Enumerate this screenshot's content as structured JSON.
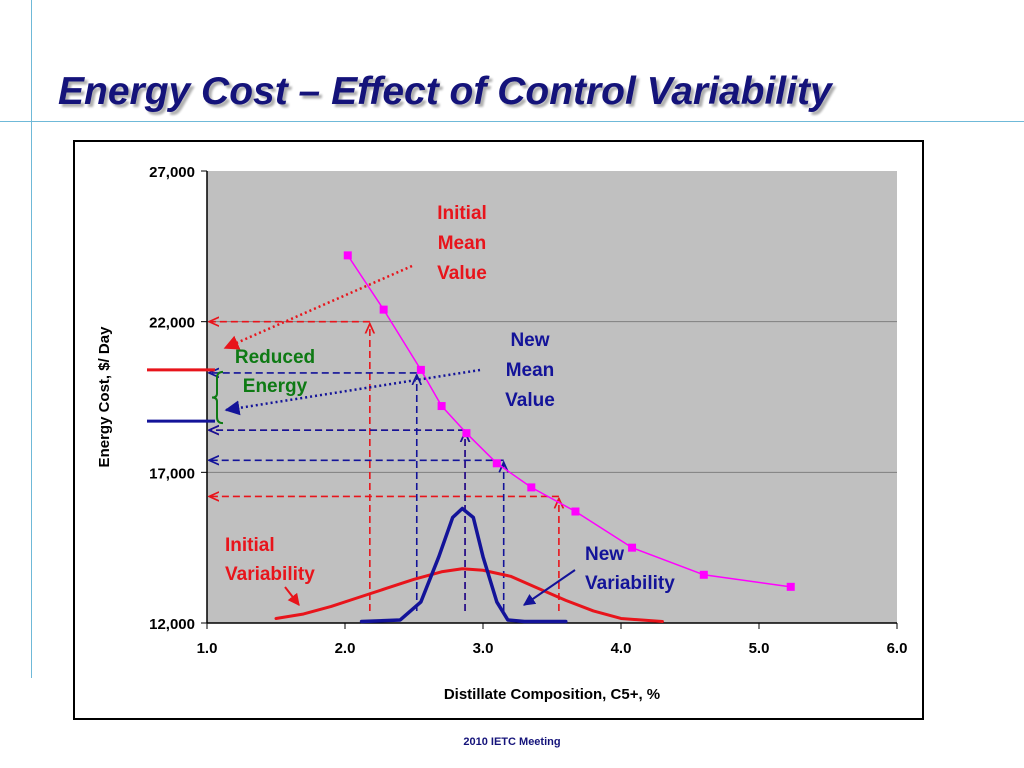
{
  "slide": {
    "title": "Energy Cost – Effect of Control Variability",
    "footer": "2010 IETC Meeting"
  },
  "colors": {
    "title": "#14137a",
    "plot_bg": "#c0c0c0",
    "cost_curve": "#ff00ff",
    "initial": "#e8141b",
    "new": "#131399",
    "reduced": "#0e7a14"
  },
  "chart_data": {
    "type": "line",
    "xlabel": "Distillate Composition, C5+, %",
    "ylabel": "Energy Cost, $/ Day",
    "xlim": [
      1.0,
      6.0
    ],
    "ylim": [
      12000,
      27000
    ],
    "x_ticks": [
      "1.0",
      "2.0",
      "3.0",
      "4.0",
      "5.0",
      "6.0"
    ],
    "y_ticks": [
      "12,000",
      "17,000",
      "22,000",
      "27,000"
    ],
    "grid": "horizontal",
    "series": [
      {
        "kind": "cost-curve",
        "x": [
          2.02,
          2.28,
          2.55,
          2.7,
          2.88,
          3.1,
          3.35,
          3.67,
          4.08,
          4.6,
          5.23
        ],
        "y": [
          24200,
          22400,
          20400,
          19200,
          18300,
          17300,
          16500,
          15700,
          14500,
          13600,
          13200
        ]
      },
      {
        "kind": "initial-distribution",
        "x": [
          1.5,
          1.7,
          1.9,
          2.1,
          2.3,
          2.5,
          2.7,
          2.85,
          3.0,
          3.2,
          3.4,
          3.6,
          3.8,
          4.0,
          4.3
        ],
        "y": [
          12150,
          12300,
          12550,
          12850,
          13150,
          13450,
          13700,
          13800,
          13750,
          13550,
          13150,
          12750,
          12400,
          12150,
          12050
        ]
      },
      {
        "kind": "new-distribution",
        "x": [
          2.12,
          2.4,
          2.55,
          2.68,
          2.78,
          2.85,
          2.93,
          3.0,
          3.1,
          3.18,
          3.3,
          3.6
        ],
        "y": [
          12050,
          12100,
          12700,
          14200,
          15500,
          15800,
          15500,
          14200,
          12700,
          12100,
          12050,
          12050
        ]
      }
    ],
    "guide_lines": {
      "initial": [
        {
          "x": 2.18,
          "y": 22000
        },
        {
          "x": 2.87,
          "y": 18400
        },
        {
          "x": 3.55,
          "y": 16200
        }
      ],
      "new": [
        {
          "x": 2.52,
          "y": 20300
        },
        {
          "x": 2.87,
          "y": 18400
        },
        {
          "x": 3.15,
          "y": 17400
        }
      ]
    },
    "annotations": {
      "initial_mean": [
        "Initial",
        "Mean",
        "Value"
      ],
      "new_mean": [
        "New",
        "Mean",
        "Value"
      ],
      "reduced_energy": [
        "Reduced",
        "Energy"
      ],
      "initial_variability": [
        "Initial",
        "Variability"
      ],
      "new_variability": [
        "New",
        "Variability"
      ]
    }
  }
}
